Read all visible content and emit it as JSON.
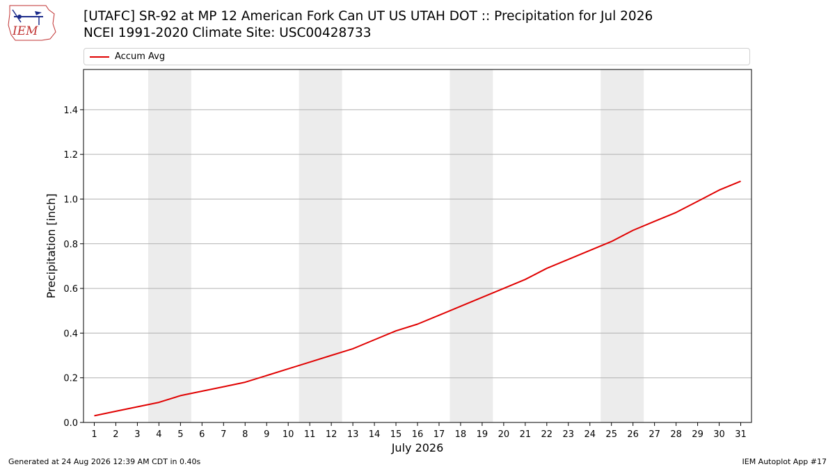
{
  "header": {
    "logo_text": "IEM",
    "title_line1": "[UTAFC] SR-92 at MP 12 American Fork Can UT US UTAH DOT :: Precipitation for Jul 2026",
    "title_line2": "NCEI 1991-2020 Climate Site: USC00428733"
  },
  "footer": {
    "generated": "Generated at 24 Aug 2026 12:39 AM CDT in 0.40s",
    "app": "IEM Autoplot App #17"
  },
  "colors": {
    "series": "#e00000",
    "weekend_band": "#ececec",
    "grid": "#b0b0b0"
  },
  "chart_data": {
    "type": "line",
    "xlabel": "July 2026",
    "ylabel": "Precipitation [inch]",
    "xlim": [
      0.5,
      31.5
    ],
    "ylim": [
      0.0,
      1.58
    ],
    "yticks": [
      0.0,
      0.2,
      0.4,
      0.6,
      0.8,
      1.0,
      1.2,
      1.4
    ],
    "ytick_labels": [
      "0.0",
      "0.2",
      "0.4",
      "0.6",
      "0.8",
      "1.0",
      "1.2",
      "1.4"
    ],
    "xticks": [
      1,
      2,
      3,
      4,
      5,
      6,
      7,
      8,
      9,
      10,
      11,
      12,
      13,
      14,
      15,
      16,
      17,
      18,
      19,
      20,
      21,
      22,
      23,
      24,
      25,
      26,
      27,
      28,
      29,
      30,
      31
    ],
    "xtick_labels": [
      "1",
      "2",
      "3",
      "4",
      "5",
      "6",
      "7",
      "8",
      "9",
      "10",
      "11",
      "12",
      "13",
      "14",
      "15",
      "16",
      "17",
      "18",
      "19",
      "20",
      "21",
      "22",
      "23",
      "24",
      "25",
      "26",
      "27",
      "28",
      "29",
      "30",
      "31"
    ],
    "weekend_bands": [
      [
        4,
        5
      ],
      [
        11,
        12
      ],
      [
        18,
        19
      ],
      [
        25,
        26
      ]
    ],
    "grid": "horizontal",
    "legend_position": "top",
    "series": [
      {
        "name": "Accum Avg",
        "color": "#e00000",
        "x": [
          1,
          2,
          3,
          4,
          5,
          6,
          7,
          8,
          9,
          10,
          11,
          12,
          13,
          14,
          15,
          16,
          17,
          18,
          19,
          20,
          21,
          22,
          23,
          24,
          25,
          26,
          27,
          28,
          29,
          30,
          31
        ],
        "values": [
          0.03,
          0.05,
          0.07,
          0.09,
          0.12,
          0.14,
          0.16,
          0.18,
          0.21,
          0.24,
          0.27,
          0.3,
          0.33,
          0.37,
          0.41,
          0.44,
          0.48,
          0.52,
          0.56,
          0.6,
          0.64,
          0.69,
          0.73,
          0.77,
          0.81,
          0.86,
          0.9,
          0.94,
          0.99,
          1.04,
          1.08
        ]
      }
    ]
  }
}
